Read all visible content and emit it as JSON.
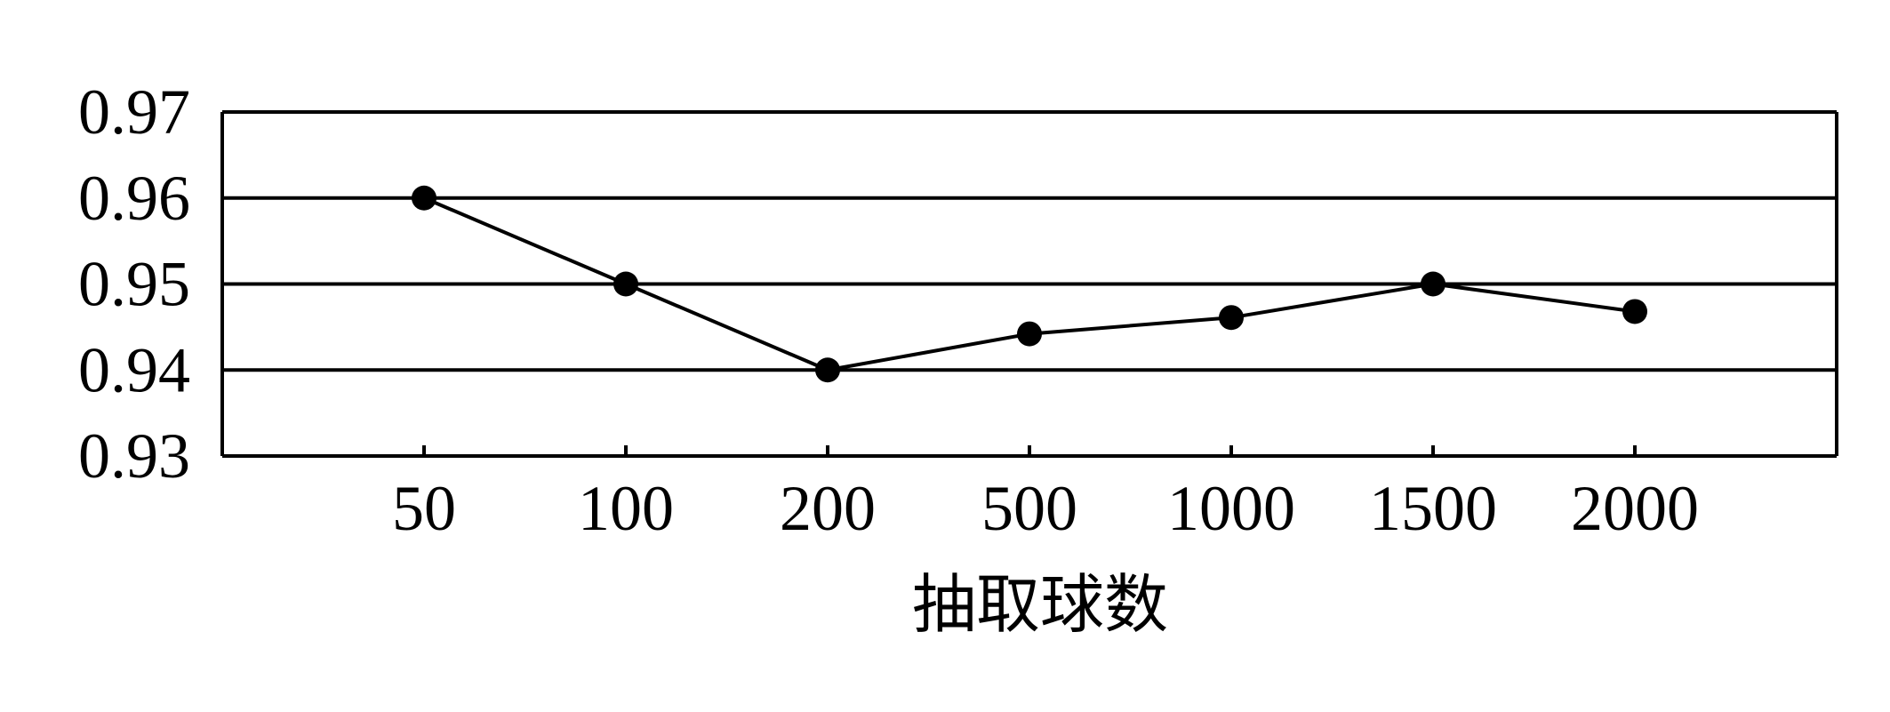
{
  "chart_data": {
    "type": "line",
    "categories": [
      "50",
      "100",
      "200",
      "500",
      "1000",
      "1500",
      "2000"
    ],
    "series": [
      {
        "values": [
          0.96,
          0.95,
          0.94,
          0.9442,
          0.9461,
          0.95,
          0.9468
        ]
      }
    ],
    "xlabel": "抽取球数",
    "ylabel": "",
    "ylim": [
      0.93,
      0.97
    ],
    "yticks": [
      "0.93",
      "0.94",
      "0.95",
      "0.96",
      "0.97"
    ],
    "grid": "horizontal",
    "colors": {
      "line": "#000000",
      "marker": "#000000",
      "frame": "#000000"
    }
  }
}
